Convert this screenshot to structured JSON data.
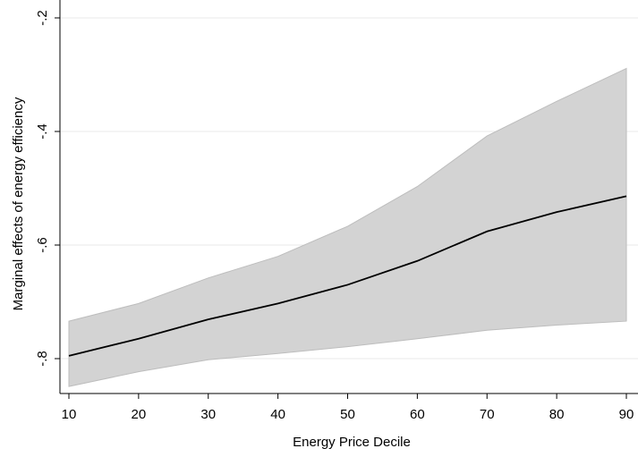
{
  "chart_data": {
    "type": "area",
    "title": "",
    "xlabel": "Energy Price Decile",
    "ylabel": "Marginal effects of energy efficiency",
    "x": [
      10,
      20,
      30,
      40,
      50,
      60,
      70,
      80,
      90
    ],
    "xticks": [
      "10",
      "20",
      "30",
      "40",
      "50",
      "60",
      "70",
      "80",
      "90"
    ],
    "yticks": [
      {
        "value": -0.2,
        "label": "-.2"
      },
      {
        "value": -0.4,
        "label": "-.4"
      },
      {
        "value": -0.6,
        "label": "-.6"
      },
      {
        "value": -0.8,
        "label": "-.8"
      }
    ],
    "xlim": [
      10,
      90
    ],
    "ylim": [
      -0.2,
      -0.8
    ],
    "grid": true,
    "series": [
      {
        "role": "point-estimate",
        "values": [
          -0.795,
          -0.765,
          -0.731,
          -0.703,
          -0.67,
          -0.628,
          -0.576,
          -0.542,
          -0.514
        ],
        "color": "#000000"
      }
    ],
    "confidence_band": {
      "upper": [
        -0.734,
        -0.703,
        -0.658,
        -0.62,
        -0.567,
        -0.497,
        -0.408,
        -0.347,
        -0.289
      ],
      "lower": [
        -0.849,
        -0.823,
        -0.802,
        -0.791,
        -0.779,
        -0.765,
        -0.75,
        -0.741,
        -0.734
      ],
      "color": "#d3d3d3"
    }
  }
}
